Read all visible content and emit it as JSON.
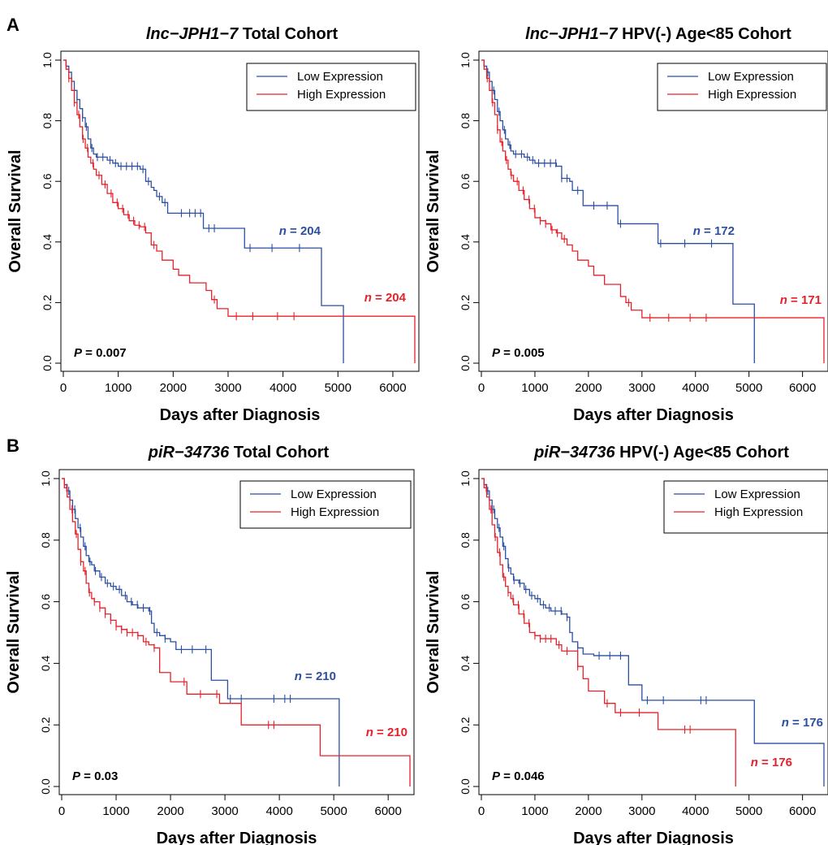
{
  "panel_letters": [
    "A",
    "B"
  ],
  "colors": {
    "low": "#2b4fa2",
    "high": "#e8202a",
    "axis": "#000000"
  },
  "chart_data": [
    {
      "type": "line",
      "panel": "A",
      "title": {
        "italic": "lnc−JPH1−7",
        "rest": " Total Cohort"
      },
      "xlabel": "Days after Diagnosis",
      "ylabel": "Overall Survival",
      "xlim": [
        0,
        6400
      ],
      "ylim": [
        0,
        1.0
      ],
      "xticks": [
        0,
        1000,
        2000,
        3000,
        4000,
        5000,
        6000
      ],
      "yticks": [
        "0.0",
        "0.2",
        "0.4",
        "0.6",
        "0.8",
        "1.0"
      ],
      "legend": {
        "position": "top-right",
        "entries": [
          "Low Expression",
          "High Expression"
        ]
      },
      "p_value": {
        "label": "P",
        "value": "= 0.007"
      },
      "n_low": {
        "label": "n",
        "value": "= 204"
      },
      "n_high": {
        "label": "n",
        "value": "= 204"
      },
      "series": [
        {
          "name": "Low Expression",
          "color": "#2b4fa2",
          "x": [
            0,
            50,
            100,
            150,
            200,
            250,
            300,
            350,
            400,
            450,
            500,
            550,
            600,
            700,
            800,
            900,
            1000,
            1100,
            1200,
            1300,
            1400,
            1500,
            1600,
            1650,
            1700,
            1800,
            1900,
            2550,
            2700,
            3300,
            4700,
            5100
          ],
          "y": [
            1.0,
            0.98,
            0.96,
            0.93,
            0.9,
            0.87,
            0.84,
            0.81,
            0.78,
            0.74,
            0.71,
            0.69,
            0.68,
            0.68,
            0.67,
            0.66,
            0.65,
            0.65,
            0.65,
            0.65,
            0.64,
            0.6,
            0.58,
            0.57,
            0.55,
            0.53,
            0.495,
            0.445,
            0.445,
            0.38,
            0.19,
            0.0
          ],
          "censor_x": [
            150,
            250,
            350,
            420,
            520,
            620,
            720,
            850,
            950,
            1050,
            1150,
            1250,
            1350,
            1450,
            1550,
            1750,
            1850,
            2150,
            2300,
            2400,
            2500,
            2650,
            2750,
            3400,
            3800,
            4300
          ]
        },
        {
          "name": "High Expression",
          "color": "#e8202a",
          "x": [
            0,
            50,
            100,
            150,
            200,
            250,
            300,
            350,
            400,
            450,
            500,
            550,
            600,
            700,
            800,
            900,
            1000,
            1100,
            1200,
            1300,
            1400,
            1500,
            1600,
            1700,
            1800,
            2000,
            2100,
            2300,
            2600,
            2700,
            2800,
            3000
          ],
          "y": [
            1.0,
            0.97,
            0.94,
            0.9,
            0.86,
            0.82,
            0.78,
            0.74,
            0.71,
            0.68,
            0.66,
            0.64,
            0.62,
            0.59,
            0.56,
            0.53,
            0.51,
            0.49,
            0.47,
            0.455,
            0.45,
            0.43,
            0.39,
            0.37,
            0.34,
            0.31,
            0.29,
            0.265,
            0.24,
            0.21,
            0.18,
            0.155
          ],
          "censor_x": [
            100,
            200,
            280,
            360,
            440,
            540,
            650,
            760,
            870,
            980,
            1080,
            1180,
            1280,
            1380,
            1480,
            1650,
            2750,
            3150,
            3450,
            3900,
            4200
          ]
        }
      ]
    },
    {
      "type": "line",
      "panel": "A",
      "title": {
        "italic": "lnc−JPH1−7",
        "rest": " HPV(-) Age<85 Cohort"
      },
      "xlabel": "Days after Diagnosis",
      "ylabel": "Overall Survival",
      "xlim": [
        0,
        6400
      ],
      "ylim": [
        0,
        1.0
      ],
      "xticks": [
        0,
        1000,
        2000,
        3000,
        4000,
        5000,
        6000
      ],
      "yticks": [
        "0.0",
        "0.2",
        "0.4",
        "0.6",
        "0.8",
        "1.0"
      ],
      "legend": {
        "position": "top-right",
        "entries": [
          "Low Expression",
          "High Expression"
        ]
      },
      "p_value": {
        "label": "P",
        "value": "= 0.005"
      },
      "n_low": {
        "label": "n",
        "value": "= 172"
      },
      "n_high": {
        "label": "n",
        "value": "= 171"
      },
      "series": [
        {
          "name": "Low Expression",
          "color": "#2b4fa2",
          "x": [
            0,
            50,
            100,
            150,
            200,
            250,
            300,
            350,
            400,
            450,
            500,
            550,
            600,
            700,
            800,
            900,
            1000,
            1100,
            1200,
            1300,
            1400,
            1500,
            1650,
            1700,
            1900,
            2550,
            2700,
            3300,
            4700,
            5100
          ],
          "y": [
            1.0,
            0.98,
            0.96,
            0.93,
            0.9,
            0.87,
            0.83,
            0.8,
            0.77,
            0.74,
            0.72,
            0.7,
            0.69,
            0.69,
            0.68,
            0.67,
            0.66,
            0.66,
            0.66,
            0.66,
            0.65,
            0.61,
            0.6,
            0.57,
            0.52,
            0.46,
            0.46,
            0.395,
            0.195,
            0.0
          ],
          "censor_x": [
            120,
            230,
            330,
            430,
            530,
            640,
            750,
            860,
            960,
            1070,
            1180,
            1290,
            1390,
            1500,
            1600,
            1800,
            2100,
            2350,
            2600,
            3350,
            3800,
            4300
          ]
        },
        {
          "name": "High Expression",
          "color": "#e8202a",
          "x": [
            0,
            50,
            100,
            150,
            200,
            250,
            300,
            350,
            400,
            450,
            500,
            550,
            600,
            700,
            800,
            900,
            1000,
            1100,
            1200,
            1300,
            1400,
            1500,
            1600,
            1700,
            1800,
            2000,
            2100,
            2300,
            2600,
            2700,
            2800,
            3000
          ],
          "y": [
            1.0,
            0.97,
            0.94,
            0.9,
            0.86,
            0.82,
            0.77,
            0.73,
            0.7,
            0.67,
            0.64,
            0.62,
            0.6,
            0.57,
            0.54,
            0.51,
            0.48,
            0.47,
            0.46,
            0.44,
            0.43,
            0.41,
            0.39,
            0.37,
            0.34,
            0.32,
            0.29,
            0.26,
            0.22,
            0.2,
            0.175,
            0.15
          ],
          "censor_x": [
            110,
            210,
            300,
            380,
            470,
            560,
            670,
            780,
            890,
            990,
            1100,
            1200,
            1320,
            1420,
            1550,
            2750,
            3150,
            3500,
            3900,
            4200
          ]
        }
      ]
    },
    {
      "type": "line",
      "panel": "B",
      "title": {
        "italic": "piR−34736",
        "rest": " Total Cohort"
      },
      "xlabel": "Days after Diagnosis",
      "ylabel": "Overall Survival",
      "xlim": [
        0,
        6400
      ],
      "ylim": [
        0,
        1.0
      ],
      "xticks": [
        0,
        1000,
        2000,
        3000,
        4000,
        5000,
        6000
      ],
      "yticks": [
        "0.0",
        "0.2",
        "0.4",
        "0.6",
        "0.8",
        "1.0"
      ],
      "legend": {
        "position": "top-right",
        "entries": [
          "Low Expression",
          "High Expression"
        ]
      },
      "p_value": {
        "label": "P",
        "value": "= 0.03"
      },
      "n_low": {
        "label": "n",
        "value": "= 210"
      },
      "n_high": {
        "label": "n",
        "value": "= 210"
      },
      "series": [
        {
          "name": "Low Expression",
          "color": "#2b4fa2",
          "x": [
            0,
            50,
            100,
            150,
            200,
            250,
            300,
            350,
            400,
            450,
            500,
            550,
            600,
            700,
            800,
            900,
            1000,
            1100,
            1200,
            1300,
            1400,
            1500,
            1600,
            1650,
            1700,
            1800,
            1900,
            2000,
            2100,
            2700,
            2750,
            3050,
            5100
          ],
          "y": [
            1.0,
            0.98,
            0.96,
            0.93,
            0.9,
            0.87,
            0.84,
            0.81,
            0.78,
            0.75,
            0.73,
            0.72,
            0.7,
            0.68,
            0.66,
            0.65,
            0.64,
            0.62,
            0.6,
            0.59,
            0.58,
            0.58,
            0.57,
            0.53,
            0.5,
            0.49,
            0.48,
            0.47,
            0.445,
            0.445,
            0.345,
            0.285,
            0.0
          ],
          "censor_x": [
            130,
            240,
            340,
            430,
            520,
            620,
            730,
            840,
            950,
            1060,
            1170,
            1280,
            1390,
            1500,
            1620,
            1750,
            1900,
            2200,
            2400,
            2650,
            3100,
            3300,
            3900,
            4100,
            4200
          ]
        },
        {
          "name": "High Expression",
          "color": "#e8202a",
          "x": [
            0,
            50,
            100,
            150,
            200,
            250,
            300,
            350,
            400,
            450,
            500,
            550,
            600,
            700,
            800,
            900,
            1000,
            1100,
            1200,
            1300,
            1400,
            1500,
            1600,
            1700,
            1800,
            2000,
            2300,
            2900,
            3300,
            4750,
            6400
          ],
          "y": [
            1.0,
            0.97,
            0.94,
            0.9,
            0.86,
            0.82,
            0.77,
            0.73,
            0.7,
            0.66,
            0.63,
            0.61,
            0.6,
            0.58,
            0.56,
            0.54,
            0.52,
            0.51,
            0.5,
            0.5,
            0.49,
            0.47,
            0.46,
            0.45,
            0.37,
            0.34,
            0.3,
            0.27,
            0.2,
            0.1,
            0.0
          ],
          "censor_x": [
            90,
            190,
            270,
            350,
            430,
            510,
            600,
            700,
            800,
            900,
            1000,
            1100,
            1200,
            1300,
            1400,
            1550,
            1700,
            2250,
            2550,
            2850,
            3800,
            3900
          ]
        }
      ]
    },
    {
      "type": "line",
      "panel": "B",
      "title": {
        "italic": "piR−34736",
        "rest": " HPV(-) Age<85 Cohort"
      },
      "xlabel": "Days after Diagnosis",
      "ylabel": "Overall Survival",
      "xlim": [
        0,
        6400
      ],
      "ylim": [
        0,
        1.0
      ],
      "xticks": [
        0,
        1000,
        2000,
        3000,
        4000,
        5000,
        6000
      ],
      "yticks": [
        "0.0",
        "0.2",
        "0.4",
        "0.6",
        "0.8",
        "1.0"
      ],
      "legend": {
        "position": "top-right",
        "entries": [
          "Low Expression",
          "High Expression"
        ]
      },
      "p_value": {
        "label": "P",
        "value": "= 0.046"
      },
      "n_low": {
        "label": "n",
        "value": "= 176"
      },
      "n_high": {
        "label": "n",
        "value": "= 176"
      },
      "series": [
        {
          "name": "Low Expression",
          "color": "#2b4fa2",
          "x": [
            0,
            50,
            100,
            150,
            200,
            250,
            300,
            350,
            400,
            450,
            500,
            550,
            600,
            700,
            800,
            900,
            1000,
            1100,
            1200,
            1300,
            1400,
            1500,
            1600,
            1650,
            1700,
            1800,
            1900,
            2000,
            2100,
            2700,
            2750,
            3000,
            5100,
            6400
          ],
          "y": [
            1.0,
            0.98,
            0.96,
            0.93,
            0.9,
            0.87,
            0.84,
            0.81,
            0.78,
            0.74,
            0.71,
            0.69,
            0.67,
            0.66,
            0.64,
            0.62,
            0.61,
            0.59,
            0.58,
            0.57,
            0.57,
            0.56,
            0.55,
            0.5,
            0.47,
            0.45,
            0.43,
            0.43,
            0.425,
            0.425,
            0.33,
            0.28,
            0.14,
            0.0
          ],
          "censor_x": [
            120,
            230,
            330,
            420,
            510,
            610,
            720,
            830,
            940,
            1050,
            1160,
            1270,
            1380,
            1490,
            1600,
            1800,
            2200,
            2400,
            2600,
            3100,
            3400,
            4100,
            4200
          ]
        },
        {
          "name": "High Expression",
          "color": "#e8202a",
          "x": [
            0,
            50,
            100,
            150,
            200,
            250,
            300,
            350,
            400,
            450,
            500,
            550,
            600,
            700,
            800,
            900,
            1000,
            1100,
            1200,
            1300,
            1400,
            1500,
            1600,
            1700,
            1800,
            1900,
            2000,
            2300,
            2500,
            3300,
            4750
          ],
          "y": [
            1.0,
            0.97,
            0.94,
            0.9,
            0.85,
            0.81,
            0.76,
            0.72,
            0.68,
            0.65,
            0.63,
            0.61,
            0.59,
            0.56,
            0.53,
            0.5,
            0.49,
            0.48,
            0.48,
            0.48,
            0.46,
            0.44,
            0.44,
            0.44,
            0.39,
            0.35,
            0.31,
            0.27,
            0.24,
            0.185,
            0.0
          ],
          "censor_x": [
            90,
            180,
            260,
            340,
            420,
            500,
            590,
            690,
            790,
            890,
            1000,
            1100,
            1200,
            1300,
            1450,
            1600,
            1800,
            2350,
            2600,
            2950,
            3800,
            3900
          ]
        }
      ]
    }
  ]
}
